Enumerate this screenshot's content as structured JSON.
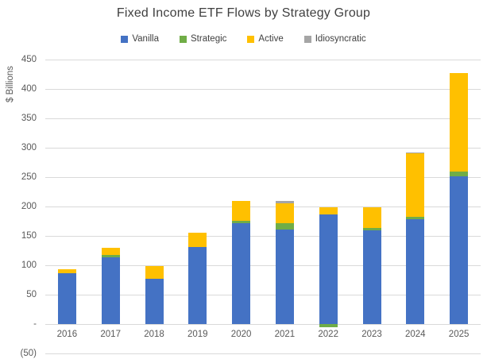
{
  "title": "Fixed Income ETF Flows by Strategy Group",
  "colors": {
    "background": "#ffffff",
    "title_text": "#404040",
    "axis_text": "#595959",
    "legend_text": "#404040",
    "gridline": "#d9d9d9",
    "vanilla": "#4472c4",
    "strategic": "#70ad47",
    "active": "#ffc000",
    "idiosyncratic": "#a5a5a5"
  },
  "chart_data": {
    "type": "bar",
    "stacked": true,
    "title": "Fixed Income ETF Flows by Strategy Group",
    "xlabel": "",
    "ylabel": "$ Billions",
    "units": "$ Billions",
    "ylim": [
      -50,
      450
    ],
    "y_tick_step": 50,
    "y_tick_labels": [
      "450",
      "400",
      "350",
      "300",
      "250",
      "200",
      "150",
      "100",
      "50",
      "-",
      "(50)"
    ],
    "y_tick_values": [
      450,
      400,
      350,
      300,
      250,
      200,
      150,
      100,
      50,
      0,
      -50
    ],
    "grid": true,
    "legend_position": "top",
    "categories": [
      "2016",
      "2017",
      "2018",
      "2019",
      "2020",
      "2021",
      "2022",
      "2023",
      "2024",
      "2025"
    ],
    "series": [
      {
        "name": "Vanilla",
        "color": "#4472c4",
        "values": [
          86,
          113,
          77,
          131,
          172,
          161,
          186,
          160,
          179,
          252
        ]
      },
      {
        "name": "Strategic",
        "color": "#70ad47",
        "values": [
          0,
          4,
          0,
          0,
          4,
          11,
          -5,
          3,
          4,
          8
        ]
      },
      {
        "name": "Active",
        "color": "#ffc000",
        "values": [
          7,
          13,
          22,
          25,
          33,
          33,
          13,
          35,
          107,
          167
        ]
      },
      {
        "name": "Idiosyncratic",
        "color": "#a5a5a5",
        "values": [
          0,
          0,
          0,
          0,
          0,
          5,
          0,
          0,
          2,
          0
        ]
      }
    ],
    "totals_top": [
      93,
      130,
      99,
      156,
      209,
      210,
      199,
      198,
      292,
      427
    ]
  }
}
